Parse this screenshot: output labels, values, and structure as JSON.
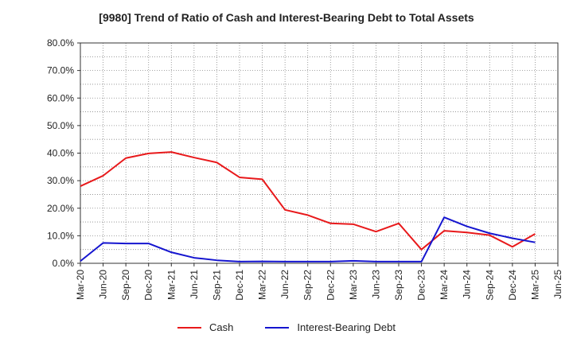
{
  "chart_data": {
    "type": "line",
    "title": "[9980]  Trend of Ratio of Cash and Interest-Bearing Debt to Total Assets",
    "xlabel": "",
    "ylabel": "",
    "ylim": [
      0,
      80
    ],
    "yticks": [
      "0.0%",
      "10.0%",
      "20.0%",
      "30.0%",
      "40.0%",
      "50.0%",
      "60.0%",
      "70.0%",
      "80.0%"
    ],
    "categories": [
      "Mar-20",
      "Jun-20",
      "Sep-20",
      "Dec-20",
      "Mar-21",
      "Jun-21",
      "Sep-21",
      "Dec-21",
      "Mar-22",
      "Jun-22",
      "Sep-22",
      "Dec-22",
      "Mar-23",
      "Jun-23",
      "Sep-23",
      "Dec-23",
      "Mar-24",
      "Jun-24",
      "Sep-24",
      "Dec-24",
      "Mar-25",
      "Jun-25"
    ],
    "grid": true,
    "legend_position": "bottom",
    "series": [
      {
        "name": "Cash",
        "color": "#e8191b",
        "values": [
          28.0,
          31.8,
          38.2,
          39.9,
          40.4,
          38.4,
          36.6,
          31.2,
          30.5,
          19.4,
          17.5,
          14.5,
          14.2,
          11.5,
          14.5,
          5.0,
          11.8,
          11.2,
          10.2,
          6.0,
          10.7,
          null
        ]
      },
      {
        "name": "Interest-Bearing Debt",
        "color": "#1515cf",
        "values": [
          0.8,
          7.4,
          7.2,
          7.2,
          4.0,
          2.0,
          1.1,
          0.6,
          0.7,
          0.6,
          0.6,
          0.6,
          0.9,
          0.6,
          0.6,
          0.6,
          16.7,
          13.4,
          10.9,
          9.1,
          7.6,
          null
        ]
      }
    ]
  }
}
